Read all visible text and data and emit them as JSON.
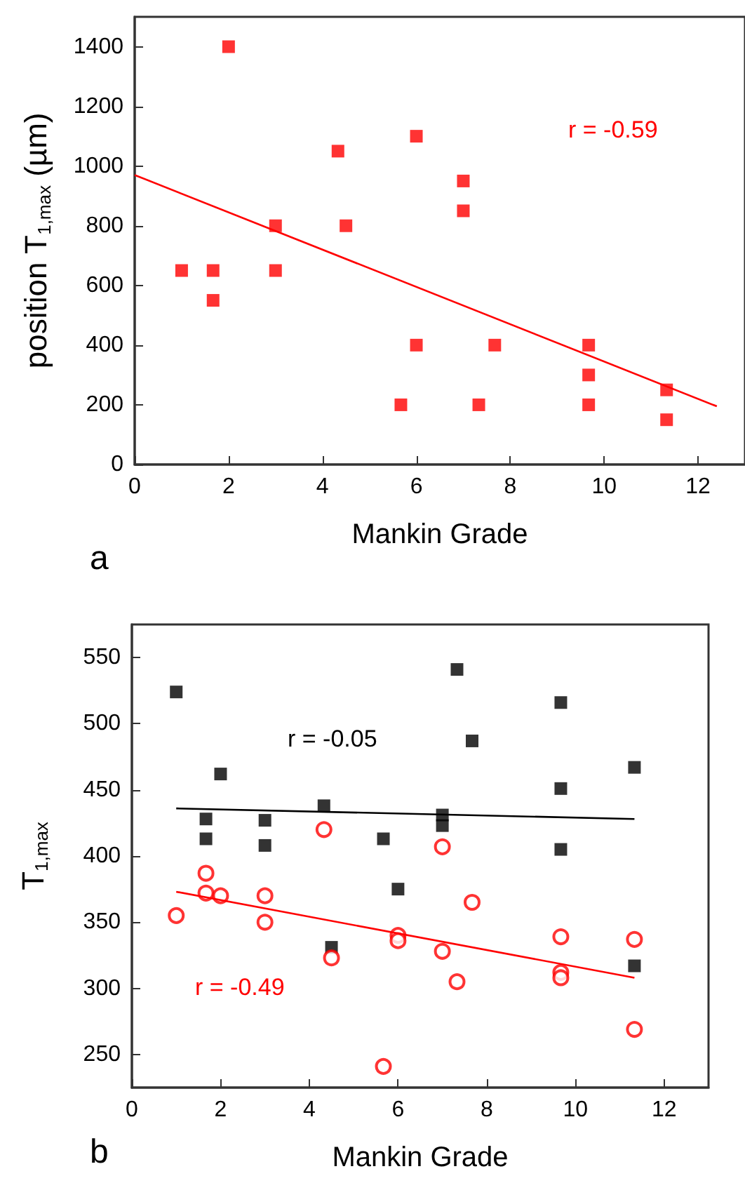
{
  "chart_data": [
    {
      "type": "scatter",
      "xlabel": "Mankin Grade",
      "ylabel": "position T$_{1,max}$ (µm)",
      "xlim": [
        0,
        13
      ],
      "xticks": [
        0,
        2,
        4,
        6,
        8,
        10,
        12
      ],
      "ylim": [
        0,
        1500
      ],
      "yticks": [
        0,
        200,
        400,
        600,
        800,
        1000,
        1200,
        1400
      ],
      "grid": false,
      "series": [
        {
          "color": "#ff0000",
          "marker": "square",
          "x": [
            1,
            1.67,
            1.67,
            2,
            3,
            3,
            4.33,
            4.5,
            5.67,
            6,
            6,
            7,
            7,
            7.33,
            7.67,
            9.67,
            9.67,
            9.67,
            11.33,
            11.33
          ],
          "values": [
            650,
            650,
            550,
            1400,
            800,
            650,
            1050,
            800,
            200,
            1100,
            400,
            950,
            850,
            200,
            400,
            400,
            300,
            200,
            250,
            150
          ]
        },
        {
          "type": "line",
          "color": "#ff0000",
          "marker": "none",
          "x": [
            0,
            12.4
          ],
          "values": [
            970,
            195
          ]
        }
      ],
      "annotations": [
        "r = -0.59",
        "a"
      ]
    },
    {
      "type": "scatter",
      "xlabel": "Mankin Grade",
      "ylabel": "T$_{1,max}$",
      "xlim": [
        0,
        13
      ],
      "xticks": [
        0,
        2,
        4,
        6,
        8,
        10,
        12
      ],
      "ylim": [
        225,
        575
      ],
      "yticks": [
        250,
        300,
        350,
        400,
        450,
        500,
        550
      ],
      "grid": false,
      "series": [
        {
          "color": "#000000",
          "marker": "square",
          "x": [
            1,
            1.67,
            1.67,
            2,
            3,
            3,
            4.33,
            4.5,
            5.67,
            6,
            7,
            7,
            7.33,
            7.67,
            9.67,
            9.67,
            9.67,
            11.33,
            11.33
          ],
          "values": [
            524,
            428,
            413,
            462,
            427,
            408,
            438,
            331,
            413,
            375,
            431,
            423,
            541,
            487,
            516,
            451,
            405,
            467,
            317
          ]
        },
        {
          "color": "#ff0000",
          "marker": "circle",
          "x": [
            1,
            1.67,
            1.67,
            2,
            3,
            3,
            4.33,
            4.5,
            5.67,
            6,
            6,
            7,
            7,
            7.33,
            7.67,
            9.67,
            9.67,
            9.67,
            11.33,
            11.33
          ],
          "values": [
            355,
            387,
            372,
            370,
            370,
            350,
            420,
            323,
            241,
            340,
            336,
            407,
            328,
            305,
            365,
            339,
            312,
            308,
            337,
            269
          ]
        },
        {
          "type": "line",
          "color": "#000000",
          "marker": "none",
          "x": [
            1,
            11.33
          ],
          "values": [
            436,
            428
          ]
        },
        {
          "type": "line",
          "color": "#ff0000",
          "marker": "none",
          "x": [
            1,
            11.33
          ],
          "values": [
            373,
            308
          ]
        }
      ],
      "annotations": [
        "r = -0.05",
        "r = -0.49",
        "b"
      ]
    }
  ]
}
